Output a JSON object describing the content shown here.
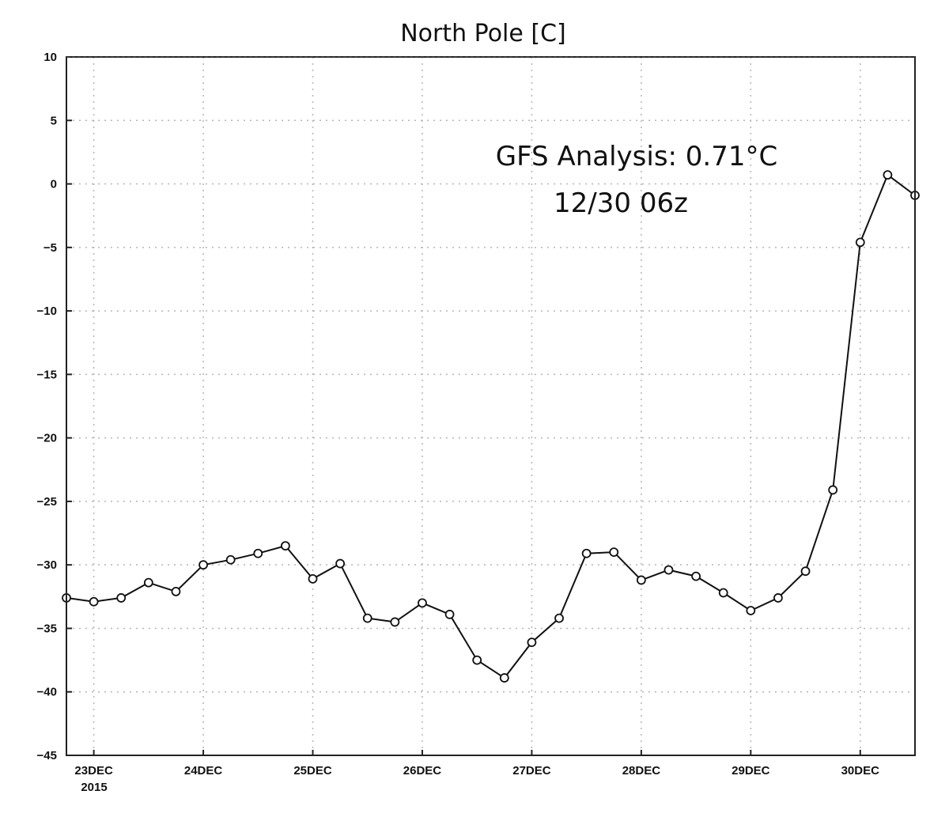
{
  "chart_data": {
    "type": "line",
    "title": "North Pole [C]",
    "annotation_lines": [
      "GFS Analysis:  0.71°C",
      "12/30 06z"
    ],
    "x_unit": "days since 2015-12-23 00z",
    "xlim": [
      -0.25,
      7.5
    ],
    "ylim": [
      -45,
      10
    ],
    "y_ticks": [
      10,
      5,
      0,
      -5,
      -10,
      -15,
      -20,
      -25,
      -30,
      -35,
      -40,
      -45
    ],
    "y_tick_labels": [
      "10",
      "5",
      "0",
      "−5",
      "−10",
      "−15",
      "−20",
      "−25",
      "−30",
      "−35",
      "−40",
      "−45"
    ],
    "x_ticks": [
      0,
      1,
      2,
      3,
      4,
      5,
      6,
      7
    ],
    "x_tick_labels": [
      "23DEC",
      "24DEC",
      "25DEC",
      "26DEC",
      "27DEC",
      "28DEC",
      "29DEC",
      "30DEC"
    ],
    "x_year_label": "2015",
    "grid": true,
    "series": [
      {
        "name": "",
        "x": [
          -0.25,
          0,
          0.25,
          0.5,
          0.75,
          1,
          1.25,
          1.5,
          1.75,
          2,
          2.25,
          2.5,
          2.75,
          3,
          3.25,
          3.5,
          3.75,
          4,
          4.25,
          4.5,
          4.75,
          5,
          5.25,
          5.5,
          5.75,
          6,
          6.25,
          6.5,
          6.75,
          7,
          7.25,
          7.5
        ],
        "y": [
          -32.6,
          -32.9,
          -32.6,
          -31.4,
          -32.1,
          -30.0,
          -29.6,
          -29.1,
          -28.5,
          -31.1,
          -29.9,
          -34.2,
          -34.5,
          -33.0,
          -33.9,
          -37.5,
          -38.9,
          -36.1,
          -34.2,
          -29.1,
          -29.0,
          -31.2,
          -30.4,
          -30.9,
          -32.2,
          -33.6,
          -32.6,
          -30.5,
          -24.1,
          -4.6,
          0.71,
          -0.9
        ]
      }
    ]
  }
}
